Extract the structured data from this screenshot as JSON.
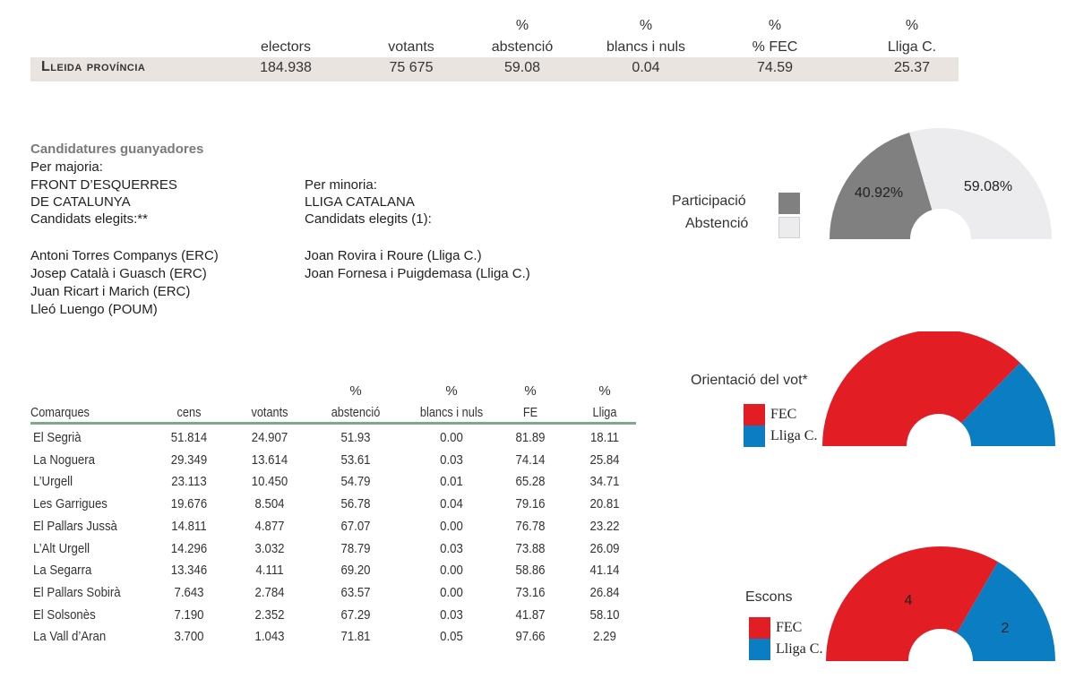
{
  "summary": {
    "title": "Lleida província",
    "headers": [
      {
        "pct": "",
        "label": "electors"
      },
      {
        "pct": "",
        "label": "votants"
      },
      {
        "pct": "%",
        "label": "abstenció"
      },
      {
        "pct": "%",
        "label": "blancs i nuls"
      },
      {
        "pct": "%",
        "label": "% FEC"
      },
      {
        "pct": "%",
        "label": "Lliga C."
      }
    ],
    "values": [
      "184.938",
      "75 675",
      "59.08",
      "0.04",
      "74.59",
      "25.37"
    ]
  },
  "winners": {
    "title": "Candidatures guanyadores",
    "majority_heading": "Per majoria:",
    "majority_party_line1": "FRONT D’ESQUERRES",
    "majority_party_line2": "DE CATALUNYA",
    "majority_elected": "Candidats elegits:**",
    "majority_candidates": [
      "Antoni Torres Companys (ERC)",
      "Josep Català i Guasch (ERC)",
      "Juan Ricart i Marich (ERC)",
      "Lleó Luengo (POUM)"
    ],
    "minority_heading": "Per minoria:",
    "minority_party": "LLIGA CATALANA",
    "minority_elected": "Candidats elegits (1):",
    "minority_candidates": [
      "Joan Rovira i Roure (Lliga C.)",
      "Joan Fornesa i Puigdemasa (Lliga C.)"
    ]
  },
  "legend_participation": {
    "items": [
      {
        "label": "Participació",
        "color": "#808080"
      },
      {
        "label": "Abstenció",
        "color": "#ececee"
      }
    ]
  },
  "legend_vote": {
    "title": "Orientació del vot*",
    "items": [
      {
        "label": "FEC",
        "color": "#e31d24"
      },
      {
        "label": "Lliga C.",
        "color": "#0b7dc2"
      }
    ]
  },
  "legend_seats": {
    "title": "Escons",
    "items": [
      {
        "label": "FEC",
        "color": "#e31d24"
      },
      {
        "label": "Lliga C.",
        "color": "#0b7dc2"
      }
    ]
  },
  "chart_data": [
    {
      "type": "pie",
      "shape": "semicircle-donut",
      "categories": [
        "Participació",
        "Abstenció"
      ],
      "values": [
        40.92,
        59.08
      ],
      "data_labels": [
        "40.92%",
        "59.08%"
      ],
      "colors": [
        "#808080",
        "#ececee"
      ]
    },
    {
      "type": "pie",
      "shape": "semicircle-donut",
      "title": "Orientació del vot*",
      "categories": [
        "FEC",
        "Lliga C."
      ],
      "values": [
        74.59,
        25.37
      ],
      "colors": [
        "#e31d24",
        "#0b7dc2"
      ]
    },
    {
      "type": "pie",
      "shape": "semicircle-donut",
      "title": "Escons",
      "categories": [
        "FEC",
        "Lliga C."
      ],
      "values": [
        4,
        2
      ],
      "data_labels": [
        "4",
        "2"
      ],
      "colors": [
        "#e31d24",
        "#0b7dc2"
      ]
    },
    {
      "type": "table",
      "columns": [
        {
          "pct": "",
          "label": "Comarques"
        },
        {
          "pct": "",
          "label": "cens"
        },
        {
          "pct": "",
          "label": "votants"
        },
        {
          "pct": "%",
          "label": "abstenció"
        },
        {
          "pct": "%",
          "label": "blancs i nuls"
        },
        {
          "pct": "%",
          "label": "FE"
        },
        {
          "pct": "%",
          "label": "Lliga"
        }
      ],
      "rows": [
        [
          "El Segrià",
          "51.814",
          "24.907",
          "51.93",
          "0.00",
          "81.89",
          "18.11"
        ],
        [
          "La Noguera",
          "29.349",
          "13.614",
          "53.61",
          "0.03",
          "74.14",
          "25.84"
        ],
        [
          "L’Urgell",
          "23.113",
          "10.450",
          "54.79",
          "0.01",
          "65.28",
          "34.71"
        ],
        [
          "Les Garrigues",
          "19.676",
          "8.504",
          "56.78",
          "0.04",
          "79.16",
          "20.81"
        ],
        [
          "El Pallars Jussà",
          "14.811",
          "4.877",
          "67.07",
          "0.00",
          "76.78",
          "23.22"
        ],
        [
          "L’Alt Urgell",
          "14.296",
          "3.032",
          "78.79",
          "0.03",
          "73.88",
          "26.09"
        ],
        [
          "La Segarra",
          "13.346",
          "4.111",
          "69.20",
          "0.00",
          "58.86",
          "41.14"
        ],
        [
          "El Pallars Sobirà",
          "7.643",
          "2.784",
          "63.57",
          "0.00",
          "73.16",
          "26.84"
        ],
        [
          "El Solsonès",
          "7.190",
          "2.352",
          "67.29",
          "0.03",
          "41.87",
          "58.10"
        ],
        [
          "La Vall d’Aran",
          "3.700",
          "1.043",
          "71.81",
          "0.05",
          "97.66",
          "2.29"
        ]
      ]
    }
  ]
}
